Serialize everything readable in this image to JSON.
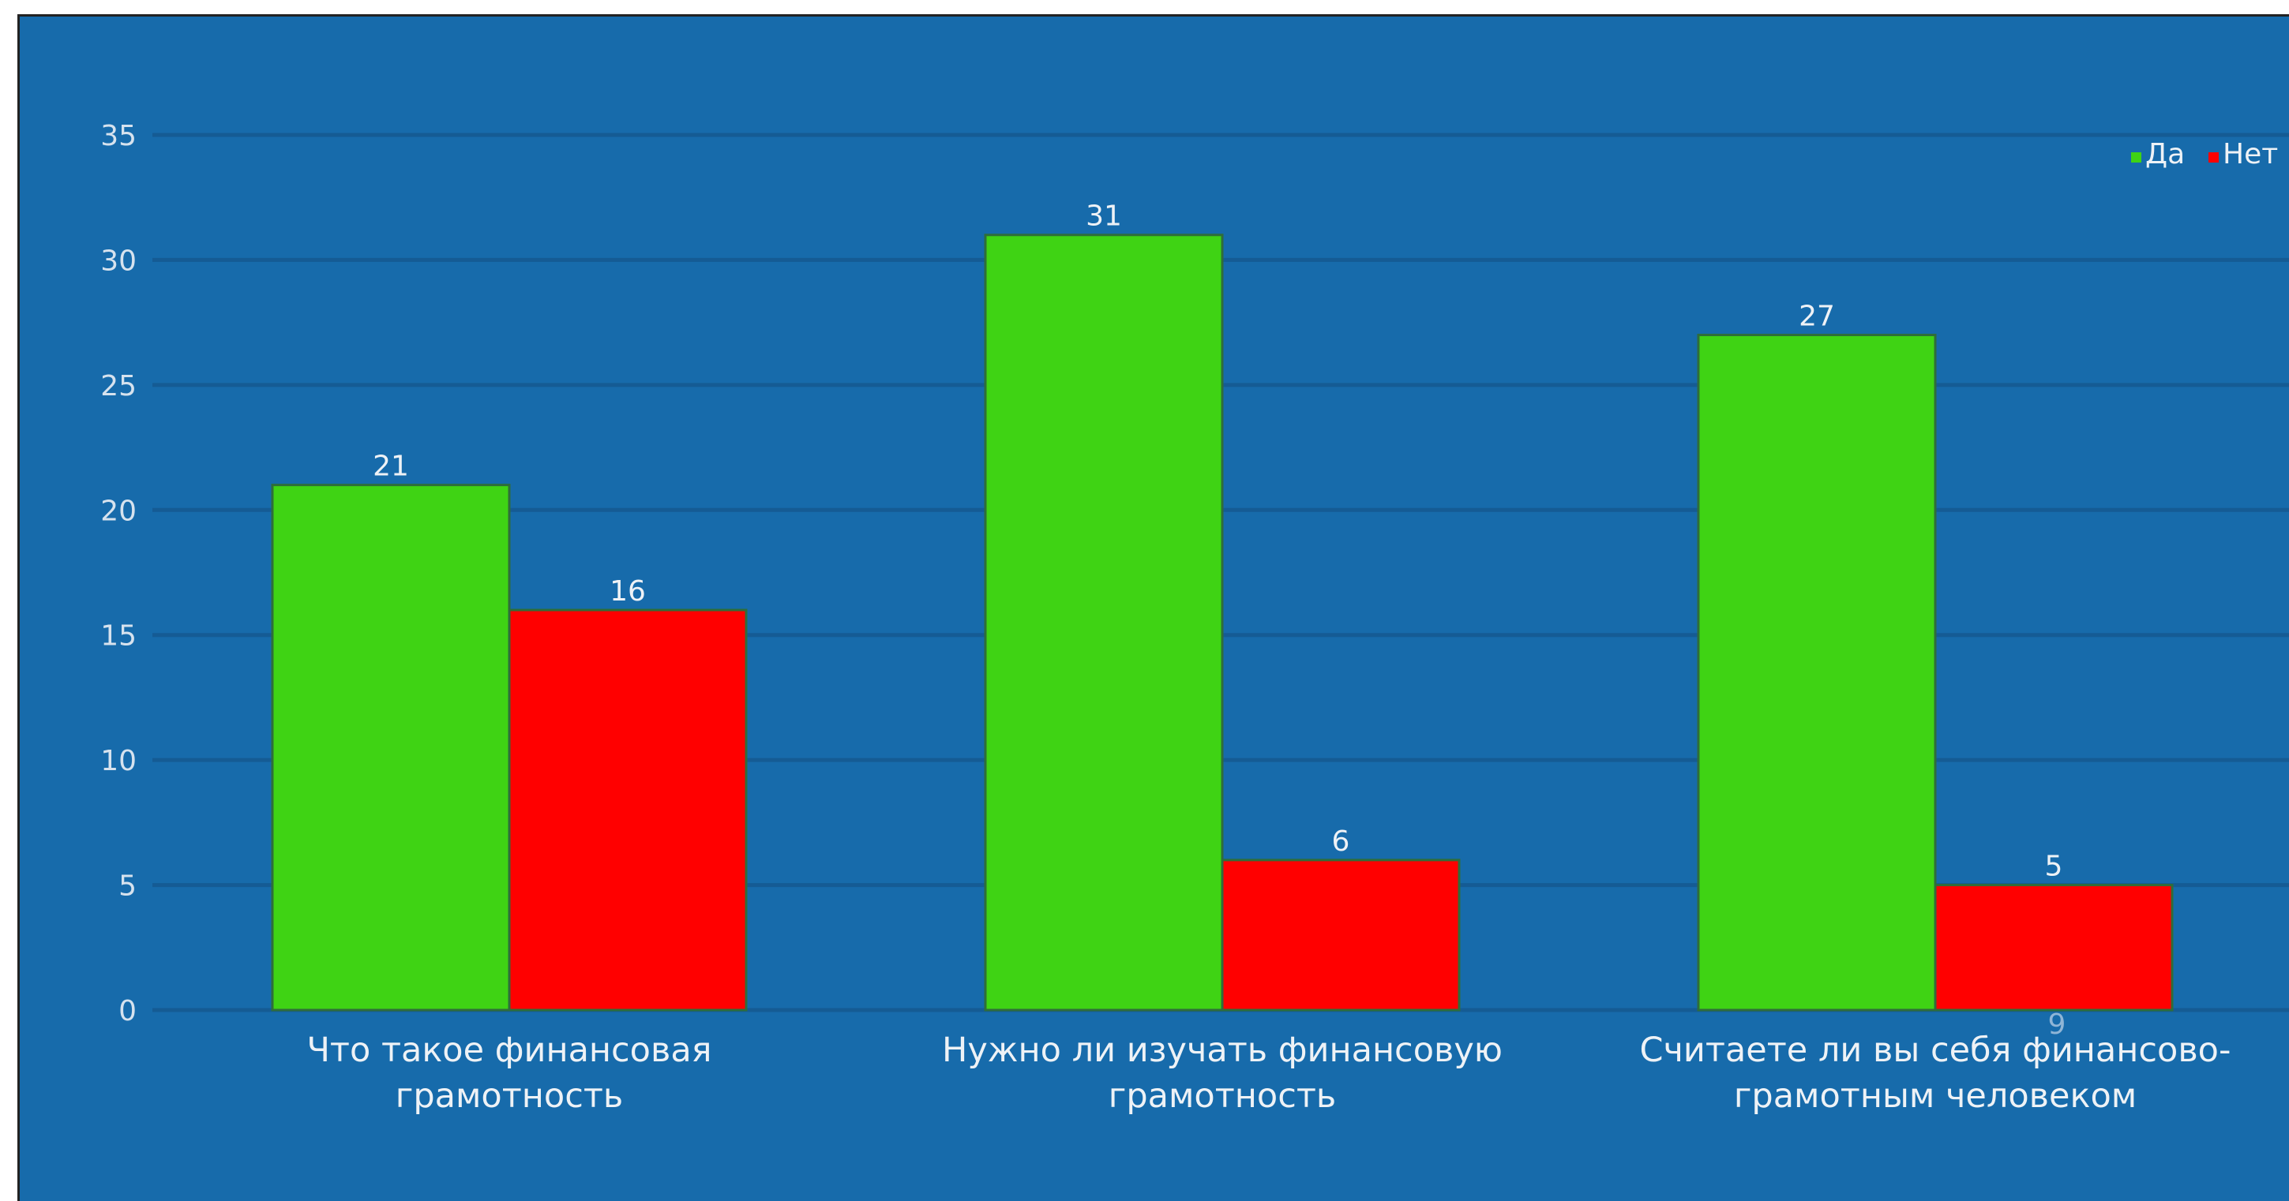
{
  "chart_data": {
    "type": "bar",
    "categories": [
      [
        "Что такое финансовая",
        "грамотность"
      ],
      [
        "Нужно ли изучать финансовую",
        "грамотность"
      ],
      [
        "Считаете ли вы себя финансово-",
        "грамотным человеком"
      ]
    ],
    "series": [
      {
        "name": "Да",
        "values": [
          21,
          31,
          27
        ],
        "color": "#3fd314"
      },
      {
        "name": "Нет",
        "values": [
          16,
          6,
          5
        ],
        "color": "#ff0000"
      }
    ],
    "ylim": [
      0,
      35
    ],
    "yticks": [
      0,
      5,
      10,
      15,
      20,
      25,
      30,
      35
    ],
    "grid": true,
    "legend": "top-right",
    "annotations": [
      "9"
    ],
    "title": "",
    "xlabel": "",
    "ylabel": ""
  },
  "colors": {
    "background": "#176bab",
    "gridline": "#155b94"
  }
}
